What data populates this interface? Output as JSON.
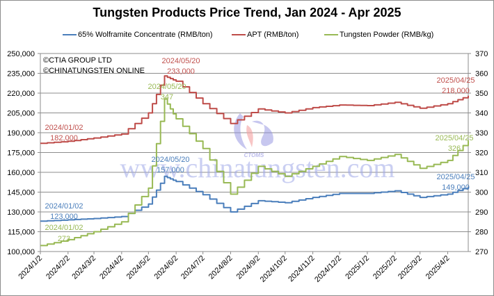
{
  "header": {
    "title": "Tungsten Products Price Trend, Jan 2024 - Apr 2025"
  },
  "legend": [
    {
      "label": "65% Wolframite Concentrate (RMB/ton)",
      "color": "#4a7ebb"
    },
    {
      "label": "APT (RMB/ton)",
      "color": "#be4b48"
    },
    {
      "label": "Tungsten Powder (RMB/kg)",
      "color": "#98b954"
    }
  ],
  "copyright": {
    "line1": "©CTIA GROUP LTD",
    "line2": "©CHINATUNGSTEN ONLINE"
  },
  "watermark": {
    "text": "www.chinatungsten.com",
    "logo_text": "CTOMS"
  },
  "annotations": [
    {
      "date": "2024/01/02",
      "value": "182,000",
      "series": "APT"
    },
    {
      "date": "2024/05/20",
      "value": "233,000",
      "series": "APT"
    },
    {
      "date": "2025/04/25",
      "value": "218,000",
      "series": "APT"
    },
    {
      "date": "2024/01/02",
      "value": "123,000",
      "series": "Wolframite"
    },
    {
      "date": "2024/05/20",
      "value": "157,000",
      "series": "Wolframite"
    },
    {
      "date": "2025/04/25",
      "value": "149,000",
      "series": "Wolframite"
    },
    {
      "date": "2024/01/02",
      "value": "273",
      "series": "Powder"
    },
    {
      "date": "2024/05/20",
      "value": "347",
      "series": "Powder"
    },
    {
      "date": "2025/04/25",
      "value": "326",
      "series": "Powder"
    }
  ],
  "axes": {
    "left_ticks": [
      "250,000",
      "235,000",
      "220,000",
      "205,000",
      "190,000",
      "175,000",
      "160,000",
      "145,000",
      "130,000",
      "115,000",
      "100,000"
    ],
    "right_ticks": [
      "370",
      "360",
      "350",
      "340",
      "330",
      "320",
      "310",
      "300",
      "290",
      "280",
      "270"
    ],
    "x_ticks": [
      "2024/1/2",
      "2024/2/2",
      "2024/3/2",
      "2024/4/2",
      "2024/5/2",
      "2024/6/2",
      "2024/7/2",
      "2024/8/2",
      "2024/9/2",
      "2024/10/2",
      "2024/11/2",
      "2024/12/2",
      "2025/1/2",
      "2025/2/2",
      "2025/3/2",
      "2025/4/2"
    ]
  },
  "chart_data": {
    "type": "line",
    "title": "Tungsten Products Price Trend, Jan 2024 - Apr 2025",
    "xlabel": "",
    "ylabel": "RMB/ton (left), RMB/kg (right)",
    "ylim_left": [
      100000,
      250000
    ],
    "ylim_right": [
      270,
      370
    ],
    "grid": true,
    "legend_position": "top",
    "categories": [
      "2024/1/2",
      "2024/2/2",
      "2024/3/2",
      "2024/4/2",
      "2024/5/2",
      "2024/5/20",
      "2024/6/2",
      "2024/7/2",
      "2024/8/2",
      "2024/9/2",
      "2024/10/2",
      "2024/11/2",
      "2024/12/2",
      "2025/1/2",
      "2025/2/2",
      "2025/3/2",
      "2025/4/2",
      "2025/4/25"
    ],
    "series": [
      {
        "name": "65% Wolframite Concentrate (RMB/ton)",
        "axis": "left",
        "color": "#4a7ebb",
        "values": [
          123000,
          124000,
          125000,
          126500,
          136000,
          157000,
          153000,
          143000,
          130000,
          138500,
          137000,
          141000,
          144000,
          144000,
          146000,
          141000,
          143500,
          149000
        ]
      },
      {
        "name": "APT (RMB/ton)",
        "axis": "left",
        "color": "#be4b48",
        "values": [
          182000,
          183500,
          186000,
          189000,
          205000,
          233000,
          229000,
          212000,
          197000,
          208000,
          205000,
          209000,
          211000,
          210500,
          213000,
          208500,
          212000,
          218000
        ]
      },
      {
        "name": "Tungsten Powder (RMB/kg)",
        "axis": "right",
        "color": "#98b954",
        "values": [
          273,
          276,
          280,
          285,
          302,
          347,
          337,
          322,
          299,
          313,
          308,
          313,
          318,
          316,
          319,
          312,
          316,
          326
        ]
      }
    ]
  }
}
